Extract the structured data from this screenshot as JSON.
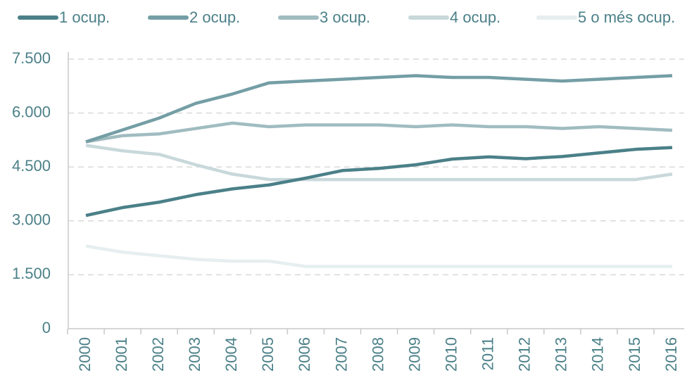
{
  "chart_data": {
    "type": "line",
    "categories": [
      "2000",
      "2001",
      "2002",
      "2003",
      "2004",
      "2005",
      "2006",
      "2007",
      "2008",
      "2009",
      "2010",
      "2011",
      "2012",
      "2013",
      "2014",
      "2015",
      "2016"
    ],
    "series": [
      {
        "name": "1 ocup.",
        "color": "#4b8088",
        "values": [
          3150,
          3370,
          3520,
          3730,
          3890,
          4000,
          4190,
          4400,
          4460,
          4560,
          4720,
          4780,
          4730,
          4790,
          4890,
          4990,
          5040
        ]
      },
      {
        "name": "2 ocup.",
        "color": "#749ea5",
        "values": [
          5200,
          5530,
          5860,
          6270,
          6530,
          6840,
          6890,
          6940,
          6990,
          7040,
          6990,
          6990,
          6940,
          6890,
          6940,
          6990,
          7040
        ]
      },
      {
        "name": "3 ocup.",
        "color": "#a0bcc0",
        "values": [
          5200,
          5370,
          5420,
          5570,
          5720,
          5620,
          5670,
          5670,
          5670,
          5620,
          5670,
          5620,
          5620,
          5570,
          5620,
          5570,
          5520
        ]
      },
      {
        "name": "4 ocup.",
        "color": "#c8d8db",
        "values": [
          5100,
          4950,
          4850,
          4560,
          4300,
          4150,
          4150,
          4150,
          4150,
          4150,
          4150,
          4150,
          4150,
          4150,
          4150,
          4150,
          4300
        ]
      },
      {
        "name": "5 o més ocup.",
        "color": "#e6eef0",
        "values": [
          2300,
          2130,
          2030,
          1930,
          1880,
          1880,
          1730,
          1730,
          1730,
          1730,
          1730,
          1730,
          1730,
          1730,
          1730,
          1730,
          1730
        ]
      }
    ],
    "ylim": [
      0,
      7500
    ],
    "yticks": [
      0,
      {
        "value": 1500,
        "label": "1.500"
      },
      {
        "value": 3000,
        "label": "3.000"
      },
      {
        "value": 4500,
        "label": "4.500"
      },
      {
        "value": 6000,
        "label": "6.000"
      },
      {
        "value": 7500,
        "label": "7.500"
      }
    ],
    "grid": true,
    "legend": "top"
  }
}
